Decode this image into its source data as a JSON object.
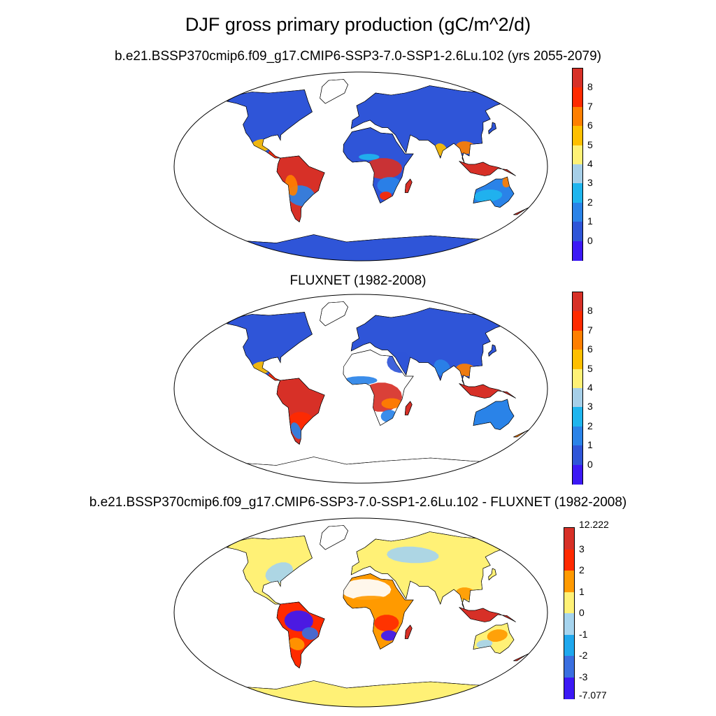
{
  "title": "DJF gross primary production (gC/m^2/d)",
  "panels": [
    {
      "subtitle": "b.e21.BSSP370cmip6.f09_g17.CMIP6-SSP3-7.0-SSP1-2.6Lu.102 (yrs 2055-2079)",
      "colorbar": {
        "labels": [
          "8",
          "7",
          "6",
          "5",
          "4",
          "3",
          "2",
          "1",
          "0"
        ],
        "colors": [
          "#d73027",
          "#ff2a00",
          "#ff7f00",
          "#ffbf00",
          "#fff176",
          "#a6cfe8",
          "#1fb5ee",
          "#2a83e8",
          "#2f55d8",
          "#3c19f5"
        ]
      }
    },
    {
      "subtitle": "FLUXNET (1982-2008)",
      "colorbar": {
        "labels": [
          "8",
          "7",
          "6",
          "5",
          "4",
          "3",
          "2",
          "1",
          "0"
        ],
        "colors": [
          "#d73027",
          "#ff2a00",
          "#ff7f00",
          "#ffbf00",
          "#fff176",
          "#a6cfe8",
          "#1fb5ee",
          "#2a83e8",
          "#2f55d8",
          "#3c19f5"
        ]
      }
    },
    {
      "subtitle": "b.e21.BSSP370cmip6.f09_g17.CMIP6-SSP3-7.0-SSP1-2.6Lu.102 - FLUXNET (1982-2008)",
      "colorbar": {
        "labels": [
          "12.222",
          "3",
          "2",
          "1",
          "0",
          "-1",
          "-2",
          "-3",
          "-7.077"
        ],
        "colors": [
          "#d73027",
          "#ff2a00",
          "#ff9a00",
          "#fff176",
          "#a6d4ee",
          "#1fa8ee",
          "#3a6fe0",
          "#3c19f5"
        ]
      }
    }
  ]
}
